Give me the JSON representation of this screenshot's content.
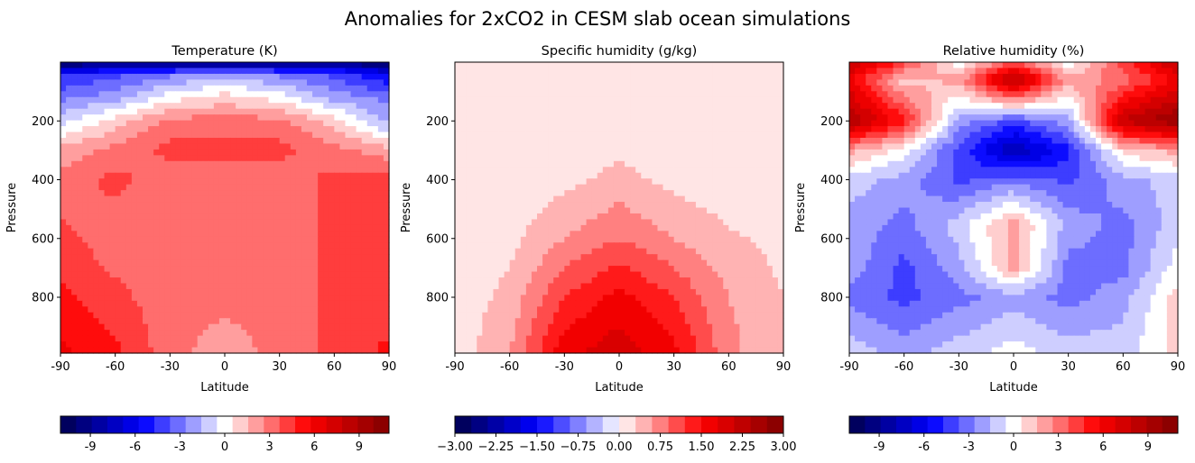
{
  "figure": {
    "title": "Anomalies for 2xCO2 in CESM slab ocean simulations"
  },
  "chart_data": [
    {
      "type": "heatmap",
      "title": "Temperature (K)",
      "xlabel": "Latitude",
      "ylabel": "Pressure",
      "xlim": [
        -90,
        90
      ],
      "ylim": [
        990,
        0
      ],
      "x_ticks": [
        "-90",
        "-60",
        "-30",
        "0",
        "30",
        "60",
        "90"
      ],
      "y_ticks": [
        "200",
        "400",
        "600",
        "800"
      ],
      "colormap": "seismic",
      "colorbar": {
        "range": [
          -11,
          11
        ],
        "ticks": [
          "-9",
          "-6",
          "-3",
          "0",
          "3",
          "6",
          "9"
        ],
        "levels": 21
      },
      "latitudes": [
        -90,
        -60,
        -30,
        0,
        30,
        60,
        90
      ],
      "pressures": [
        5,
        40,
        120,
        200,
        300,
        400,
        600,
        800,
        990
      ],
      "values": [
        [
          -10,
          -9,
          -9,
          -9,
          -9,
          -9,
          -10
        ],
        [
          -5,
          -4,
          -3,
          -2,
          -3,
          -4,
          -6
        ],
        [
          -3,
          -2,
          0,
          1,
          0,
          -2,
          -3
        ],
        [
          -1,
          1,
          3,
          3,
          3,
          1,
          -2
        ],
        [
          2,
          3,
          4,
          4,
          4,
          3,
          2
        ],
        [
          3,
          4,
          3,
          3,
          3,
          4,
          4
        ],
        [
          4,
          3,
          3,
          3,
          3,
          4,
          4
        ],
        [
          5,
          4,
          3,
          3,
          3,
          4,
          4
        ],
        [
          6,
          5,
          3,
          2,
          3,
          4,
          5
        ]
      ]
    },
    {
      "type": "heatmap",
      "title": "Specific humidity (g/kg)",
      "xlabel": "Latitude",
      "ylabel": "Pressure",
      "xlim": [
        -90,
        90
      ],
      "ylim": [
        990,
        0
      ],
      "x_ticks": [
        "-90",
        "-60",
        "-30",
        "0",
        "30",
        "60",
        "90"
      ],
      "y_ticks": [
        "200",
        "400",
        "600",
        "800"
      ],
      "colormap": "seismic",
      "colorbar": {
        "range": [
          -3,
          3
        ],
        "ticks": [
          "−3.00",
          "−2.25",
          "−1.50",
          "−0.75",
          "0.00",
          "0.75",
          "1.50",
          "2.25",
          "3.00"
        ],
        "levels": 20
      },
      "latitudes": [
        -90,
        -60,
        -30,
        0,
        30,
        60,
        90
      ],
      "pressures": [
        5,
        200,
        400,
        600,
        800,
        990
      ],
      "values": [
        [
          0.1,
          0.1,
          0.1,
          0.1,
          0.1,
          0.1,
          0.1
        ],
        [
          0.1,
          0.1,
          0.1,
          0.1,
          0.1,
          0.1,
          0.1
        ],
        [
          0.1,
          0.1,
          0.2,
          0.4,
          0.2,
          0.1,
          0.1
        ],
        [
          0.1,
          0.2,
          0.6,
          0.9,
          0.6,
          0.35,
          0.2
        ],
        [
          0.1,
          0.4,
          1.2,
          1.6,
          1.2,
          0.6,
          0.3
        ],
        [
          0.1,
          0.6,
          1.7,
          2.0,
          1.6,
          0.7,
          0.3
        ]
      ]
    },
    {
      "type": "heatmap",
      "title": "Relative humidity (%)",
      "xlabel": "Latitude",
      "ylabel": "Pressure",
      "xlim": [
        -90,
        90
      ],
      "ylim": [
        990,
        0
      ],
      "x_ticks": [
        "-90",
        "-60",
        "-30",
        "0",
        "30",
        "60",
        "90"
      ],
      "y_ticks": [
        "200",
        "400",
        "600",
        "800"
      ],
      "colormap": "seismic",
      "colorbar": {
        "range": [
          -11,
          11
        ],
        "ticks": [
          "-9",
          "-6",
          "-3",
          "0",
          "3",
          "6",
          "9"
        ],
        "levels": 21
      },
      "latitudes": [
        -90,
        -60,
        -30,
        0,
        30,
        60,
        90
      ],
      "pressures": [
        5,
        60,
        200,
        300,
        400,
        550,
        700,
        800,
        990
      ],
      "values": [
        [
          8,
          4,
          0,
          4,
          0,
          4,
          8
        ],
        [
          6,
          1,
          2,
          9,
          2,
          3,
          6
        ],
        [
          9,
          5,
          -2,
          -4,
          -2,
          8,
          10
        ],
        [
          2,
          0,
          -4,
          -8,
          -5,
          1,
          2
        ],
        [
          -1,
          -2,
          -4,
          -3,
          -4,
          -2,
          -1
        ],
        [
          -2,
          -3,
          -1,
          2,
          -2,
          -3,
          -1
        ],
        [
          -2,
          -4,
          -2,
          2,
          -3,
          -3,
          0
        ],
        [
          -3,
          -4,
          -3,
          -2,
          -3,
          -2,
          1
        ],
        [
          -1,
          -2,
          -1,
          0,
          -1,
          -1,
          1
        ]
      ]
    }
  ]
}
